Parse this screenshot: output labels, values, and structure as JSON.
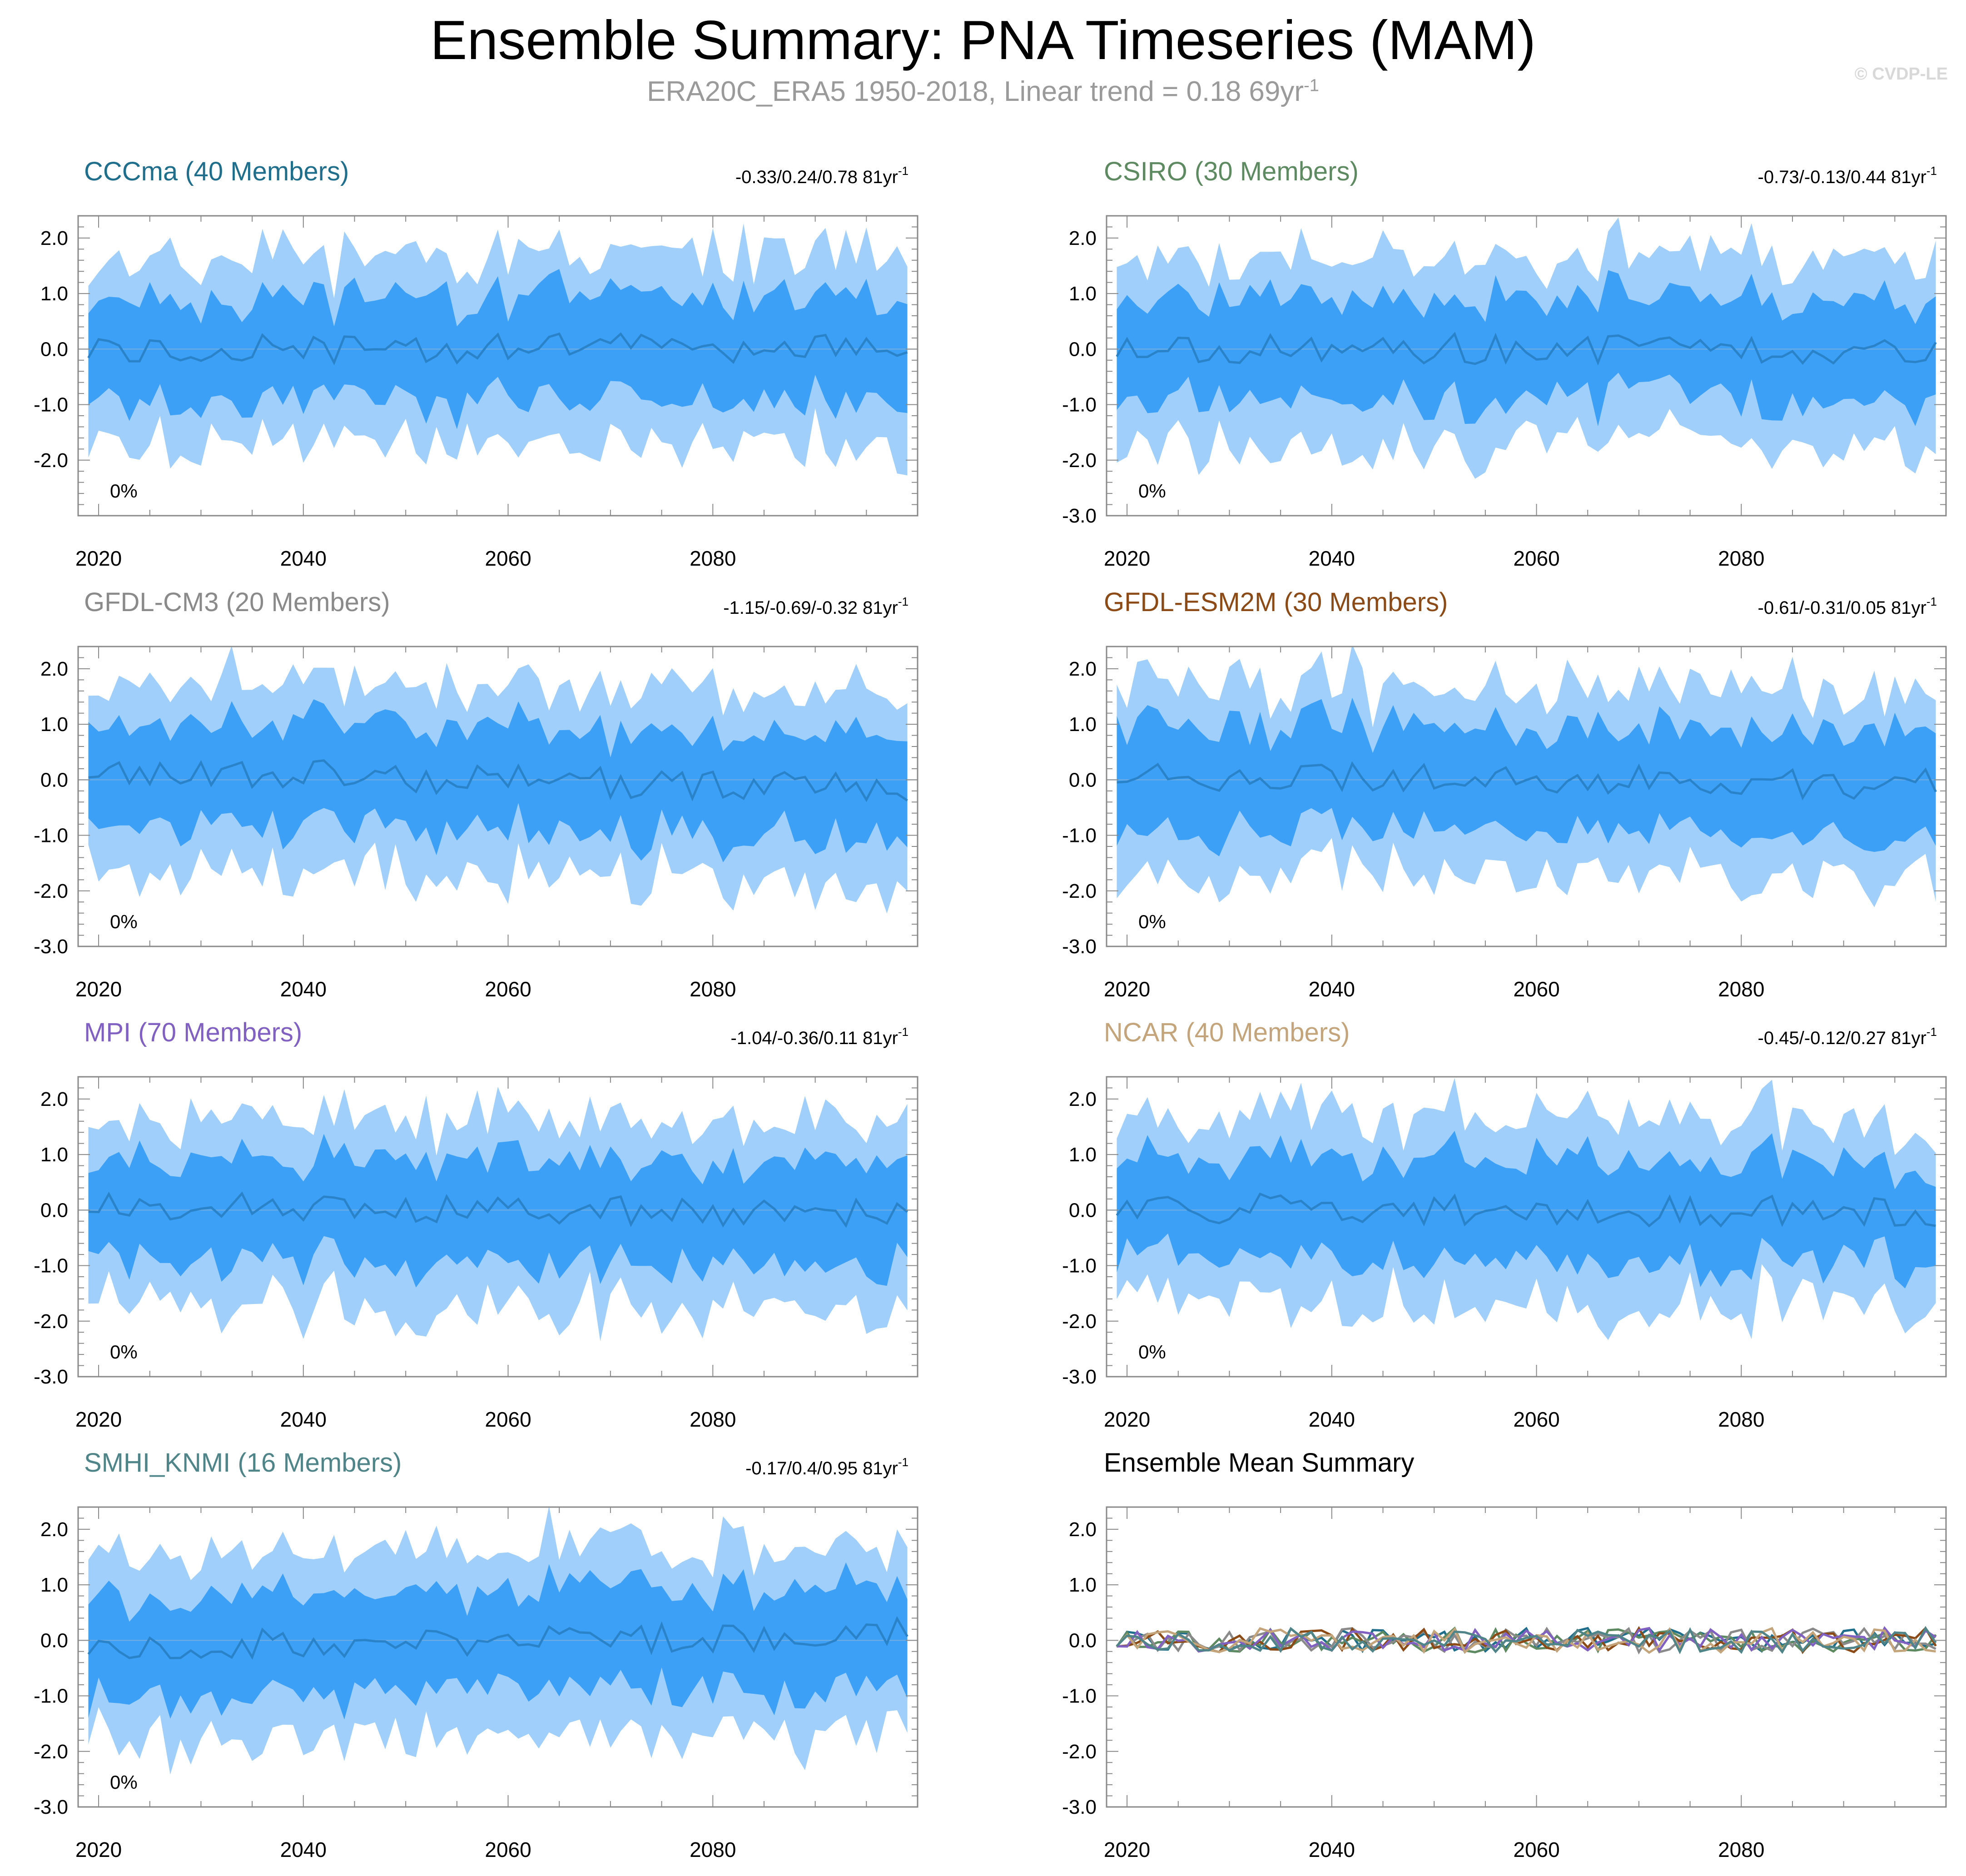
{
  "title": "Ensemble Summary: PNA Timeseries (MAM)",
  "subtitle": {
    "prefix": "ERA20C_ERA5 1950-2018, Linear trend = 0.18 69yr",
    "sup": "-1"
  },
  "watermark": "© CVDP-LE",
  "colors": {
    "outer_band": "#9fcffa",
    "inner_band": "#3ba0f6",
    "mean_line": "#2a83c8",
    "axis": "#000000",
    "zero_line": "#76aee0"
  },
  "x_ticks": [
    "2020",
    "2040",
    "2060",
    "2080"
  ],
  "percent_label": "0%",
  "chart_data": [
    {
      "type": "area",
      "title": "CCCma (40 Members)",
      "title_color": "#1f6e8c",
      "trend_text": "-0.33/0.24/0.78 81yr",
      "trend_sup": "-1",
      "xlim": [
        2018,
        2100
      ],
      "ylim": [
        -3.0,
        2.4
      ],
      "y_ticks": [
        "2.0",
        "1.0",
        "0.0",
        "-1.0",
        "-2.0"
      ],
      "x_ticks": [
        "2020",
        "2040",
        "2060",
        "2080"
      ],
      "percent": "0%",
      "seed": 11,
      "mean_drift": 0.05
    },
    {
      "type": "area",
      "title": "CSIRO (30 Members)",
      "title_color": "#5d8a60",
      "trend_text": "-0.73/-0.13/0.44 81yr",
      "trend_sup": "-1",
      "xlim": [
        2018,
        2100
      ],
      "ylim": [
        -3.0,
        2.4
      ],
      "y_ticks": [
        "2.0",
        "1.0",
        "0.0",
        "-1.0",
        "-2.0",
        "-3.0"
      ],
      "x_ticks": [
        "2020",
        "2040",
        "2060",
        "2080"
      ],
      "percent": "0%",
      "seed": 23,
      "mean_drift": -0.02
    },
    {
      "type": "area",
      "title": "GFDL-CM3 (20 Members)",
      "title_color": "#8a8a8a",
      "trend_text": "-1.15/-0.69/-0.32 81yr",
      "trend_sup": "-1",
      "xlim": [
        2018,
        2100
      ],
      "ylim": [
        -3.0,
        2.4
      ],
      "y_ticks": [
        "2.0",
        "1.0",
        "0.0",
        "-1.0",
        "-2.0",
        "-3.0"
      ],
      "x_ticks": [
        "2020",
        "2040",
        "2060",
        "2080"
      ],
      "percent": "0%",
      "seed": 37,
      "mean_drift": -0.6
    },
    {
      "type": "area",
      "title": "GFDL-ESM2M (30 Members)",
      "title_color": "#8b4a16",
      "trend_text": "-0.61/-0.31/0.05 81yr",
      "trend_sup": "-1",
      "xlim": [
        2018,
        2100
      ],
      "ylim": [
        -3.0,
        2.4
      ],
      "y_ticks": [
        "2.0",
        "1.0",
        "0.0",
        "-1.0",
        "-2.0",
        "-3.0"
      ],
      "x_ticks": [
        "2020",
        "2040",
        "2060",
        "2080"
      ],
      "percent": "0%",
      "seed": 41,
      "mean_drift": -0.3
    },
    {
      "type": "area",
      "title": "MPI (70 Members)",
      "title_color": "#8060c0",
      "trend_text": "-1.04/-0.36/0.11 81yr",
      "trend_sup": "-1",
      "xlim": [
        2018,
        2100
      ],
      "ylim": [
        -3.0,
        2.4
      ],
      "y_ticks": [
        "2.0",
        "1.0",
        "0.0",
        "-1.0",
        "-2.0",
        "-3.0"
      ],
      "x_ticks": [
        "2020",
        "2040",
        "2060",
        "2080"
      ],
      "percent": "0%",
      "seed": 53,
      "mean_drift": -0.35
    },
    {
      "type": "area",
      "title": "NCAR (40 Members)",
      "title_color": "#c4a47a",
      "trend_text": "-0.45/-0.12/0.27 81yr",
      "trend_sup": "-1",
      "xlim": [
        2018,
        2100
      ],
      "ylim": [
        -3.0,
        2.4
      ],
      "y_ticks": [
        "2.0",
        "1.0",
        "0.0",
        "-1.0",
        "-2.0",
        "-3.0"
      ],
      "x_ticks": [
        "2020",
        "2040",
        "2060",
        "2080"
      ],
      "percent": "0%",
      "seed": 67,
      "mean_drift": -0.12
    },
    {
      "type": "area",
      "title": "SMHI_KNMI (16 Members)",
      "title_color": "#4f8588",
      "trend_text": "-0.17/0.4/0.95 81yr",
      "trend_sup": "-1",
      "xlim": [
        2018,
        2100
      ],
      "ylim": [
        -3.0,
        2.4
      ],
      "y_ticks": [
        "2.0",
        "1.0",
        "0.0",
        "-1.0",
        "-2.0",
        "-3.0"
      ],
      "x_ticks": [
        "2020",
        "2040",
        "2060",
        "2080"
      ],
      "percent": "0%",
      "seed": 79,
      "mean_drift": 0.4
    },
    {
      "type": "line",
      "title": "Ensemble Mean Summary",
      "title_color": "#000000",
      "xlim": [
        2018,
        2100
      ],
      "ylim": [
        -3.0,
        2.4
      ],
      "y_ticks": [
        "2.0",
        "1.0",
        "0.0",
        "-1.0",
        "-2.0",
        "-3.0"
      ],
      "x_ticks": [
        "2020",
        "2040",
        "2060",
        "2080"
      ],
      "series": [
        {
          "name": "CCCma",
          "color": "#1f6e8c",
          "seed": 11
        },
        {
          "name": "CSIRO",
          "color": "#5d8a60",
          "seed": 23
        },
        {
          "name": "GFDL-CM3",
          "color": "#8a8a8a",
          "seed": 37
        },
        {
          "name": "GFDL-ESM2M",
          "color": "#8b4a16",
          "seed": 41
        },
        {
          "name": "MPI",
          "color": "#8060c0",
          "seed": 53
        },
        {
          "name": "NCAR",
          "color": "#c4a47a",
          "seed": 67
        },
        {
          "name": "SMHI_KNMI",
          "color": "#4f8588",
          "seed": 79
        }
      ]
    }
  ]
}
